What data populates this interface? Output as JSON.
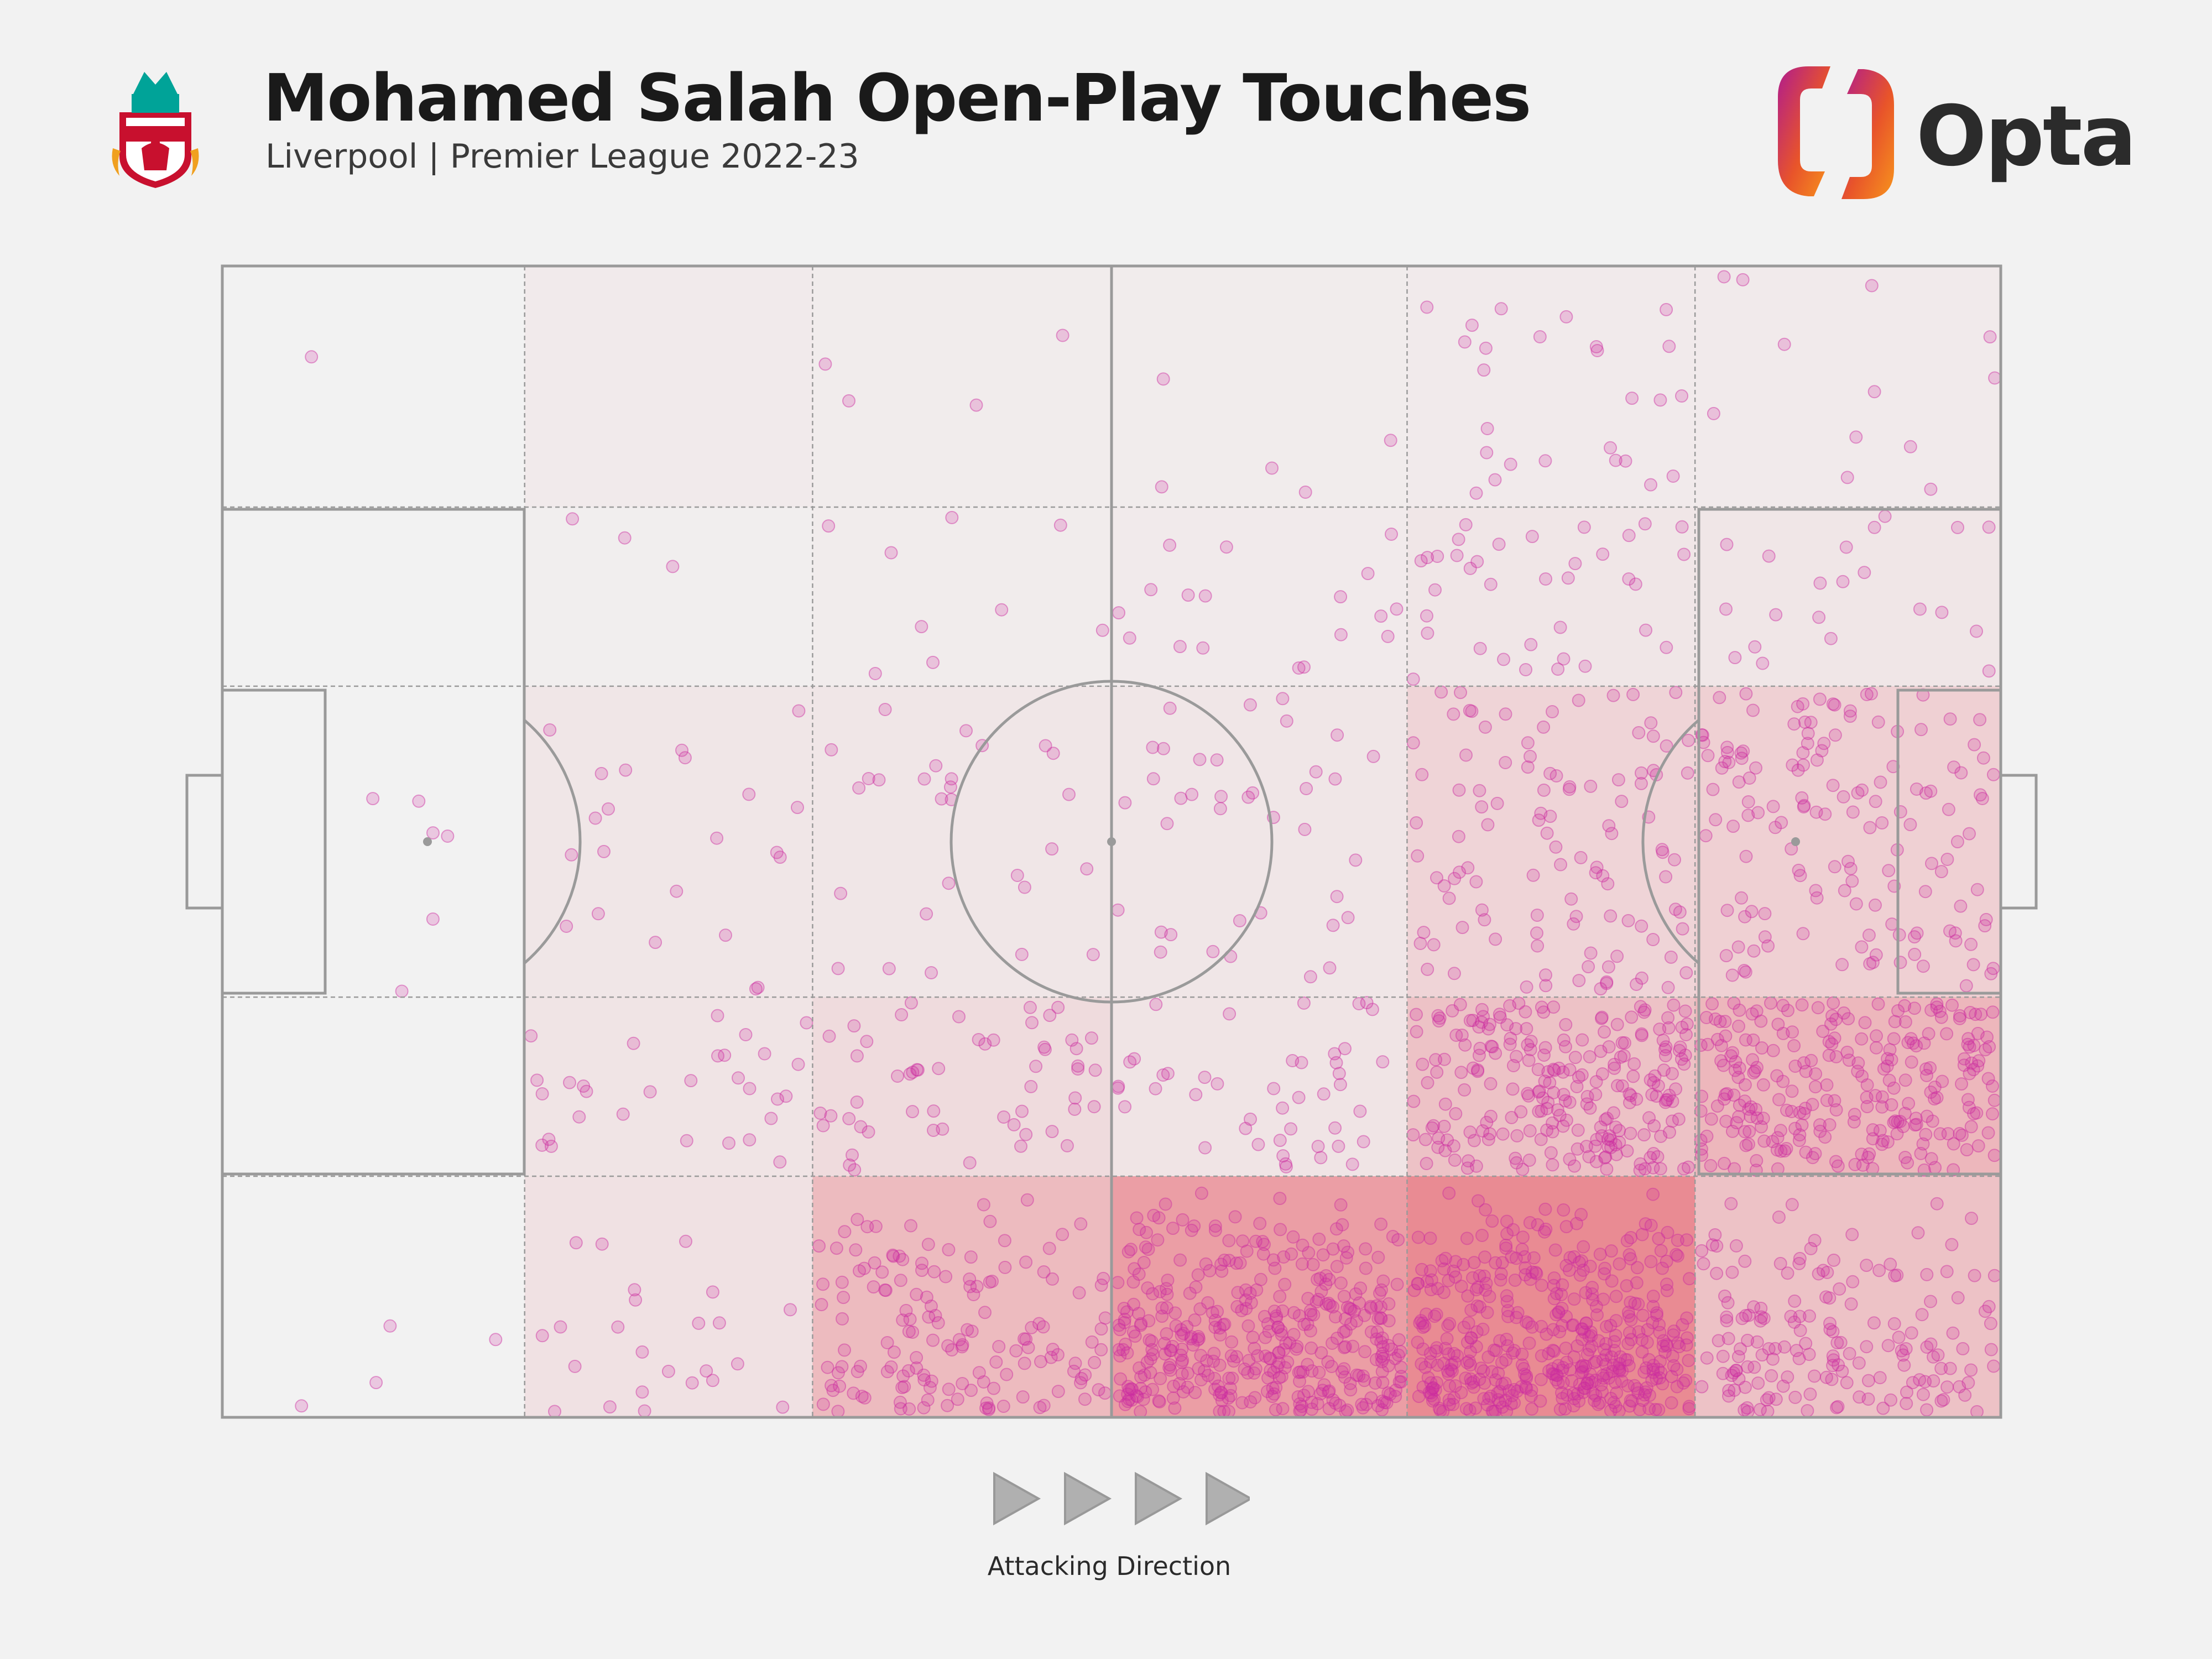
{
  "header": {
    "title": "Mohamed Salah Open-Play Touches",
    "subtitle": "Liverpool | Premier League 2022-23",
    "crest_icon": "liverpool-crest-icon",
    "brand_name": "Opta",
    "brand_icon": "opta-logo-icon"
  },
  "footer": {
    "direction_label": "Attacking Direction",
    "arrow_icon": "play-triangle-icon"
  },
  "colors": {
    "background": "#f2f2f2",
    "pitch_line": "#9a9a9a",
    "zone_fill": "#e23a4a",
    "touch_dot": "#cc2ca0",
    "brand_gradient_start": "#b01c8e",
    "brand_gradient_end": "#f7941d",
    "crest_red": "#c8102e",
    "crest_green": "#00a398"
  },
  "chart_data": {
    "type": "heatmap",
    "title": "Mohamed Salah Open-Play Touches",
    "subtitle": "Liverpool | Premier League 2022-23",
    "pitch_length": 105,
    "pitch_width": 68,
    "direction": "left-to-right",
    "x_bins": [
      0,
      17.85,
      34.85,
      52.5,
      69.95,
      86.95,
      105
    ],
    "y_bins": [
      0,
      14.24,
      24.82,
      43.18,
      53.76,
      68
    ],
    "zone_shading": [
      [
        0.0,
        0.04,
        0.03,
        0.03,
        0.04,
        0.04
      ],
      [
        0.0,
        0.02,
        0.03,
        0.04,
        0.06,
        0.06
      ],
      [
        0.0,
        0.06,
        0.06,
        0.06,
        0.16,
        0.18
      ],
      [
        0.0,
        0.07,
        0.12,
        0.07,
        0.26,
        0.32
      ],
      [
        0.0,
        0.09,
        0.3,
        0.46,
        0.56,
        0.26
      ]
    ],
    "touch_counts": [
      [
        1,
        0,
        4,
        5,
        26,
        12
      ],
      [
        0,
        3,
        9,
        18,
        36,
        21
      ],
      [
        6,
        22,
        28,
        38,
        110,
        145
      ],
      [
        0,
        30,
        55,
        45,
        240,
        260
      ],
      [
        4,
        24,
        150,
        400,
        460,
        170
      ]
    ],
    "grid": true,
    "legend": "none"
  }
}
